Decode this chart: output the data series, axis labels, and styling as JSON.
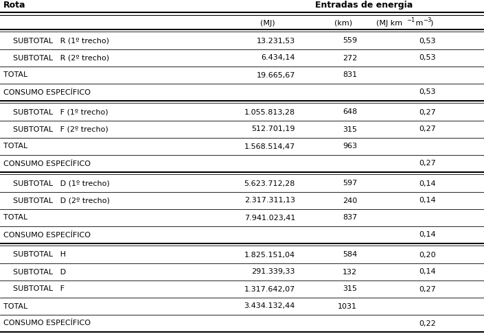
{
  "header_col1": "Rota",
  "header_col2": "Entradas de energia",
  "subheader_mj": "(MJ)",
  "subheader_km": "(km)",
  "rows": [
    {
      "label": "    SUBTOTAL   R (1º trecho)",
      "mj": "13.231,53",
      "km": "559",
      "specific": "0,53"
    },
    {
      "label": "    SUBTOTAL   R (2º trecho)",
      "mj": "6.434,14",
      "km": "272",
      "specific": "0,53"
    },
    {
      "label": "TOTAL",
      "mj": "19.665,67",
      "km": "831",
      "specific": ""
    },
    {
      "label": "CONSUMO ESPECÍFICO",
      "mj": "",
      "km": "",
      "specific": "0,53"
    },
    {
      "label": "    SUBTOTAL   F (1º trecho)",
      "mj": "1.055.813,28",
      "km": "648",
      "specific": "0,27"
    },
    {
      "label": "    SUBTOTAL   F (2º trecho)",
      "mj": "512.701,19",
      "km": "315",
      "specific": "0,27"
    },
    {
      "label": "TOTAL",
      "mj": "1.568.514,47",
      "km": "963",
      "specific": ""
    },
    {
      "label": "CONSUMO ESPECÍFICO",
      "mj": "",
      "km": "",
      "specific": "0,27"
    },
    {
      "label": "    SUBTOTAL   D (1º trecho)",
      "mj": "5.623.712,28",
      "km": "597",
      "specific": "0,14"
    },
    {
      "label": "    SUBTOTAL   D (2º trecho)",
      "mj": "2.317.311,13",
      "km": "240",
      "specific": "0,14"
    },
    {
      "label": "TOTAL",
      "mj": "7.941.023,41",
      "km": "837",
      "specific": ""
    },
    {
      "label": "CONSUMO ESPECÍFICO",
      "mj": "",
      "km": "",
      "specific": "0,14"
    },
    {
      "label": "    SUBTOTAL   H",
      "mj": "1.825.151,04",
      "km": "584",
      "specific": "0,20"
    },
    {
      "label": "    SUBTOTAL   D",
      "mj": "291.339,33",
      "km": "132",
      "specific": "0,14"
    },
    {
      "label": "    SUBTOTAL   F",
      "mj": "1.317.642,07",
      "km": "315",
      "specific": "0,27"
    },
    {
      "label": "TOTAL",
      "mj": "3.434.132,44",
      "km": "1031",
      "specific": ""
    },
    {
      "label": "CONSUMO ESPECÍFICO",
      "mj": "",
      "km": "",
      "specific": "0,22"
    }
  ],
  "thick_sep_after": [
    3,
    7,
    11
  ],
  "bg_color": "#ffffff",
  "text_color": "#000000",
  "font_size": 8.0,
  "header_font_size": 9.0
}
